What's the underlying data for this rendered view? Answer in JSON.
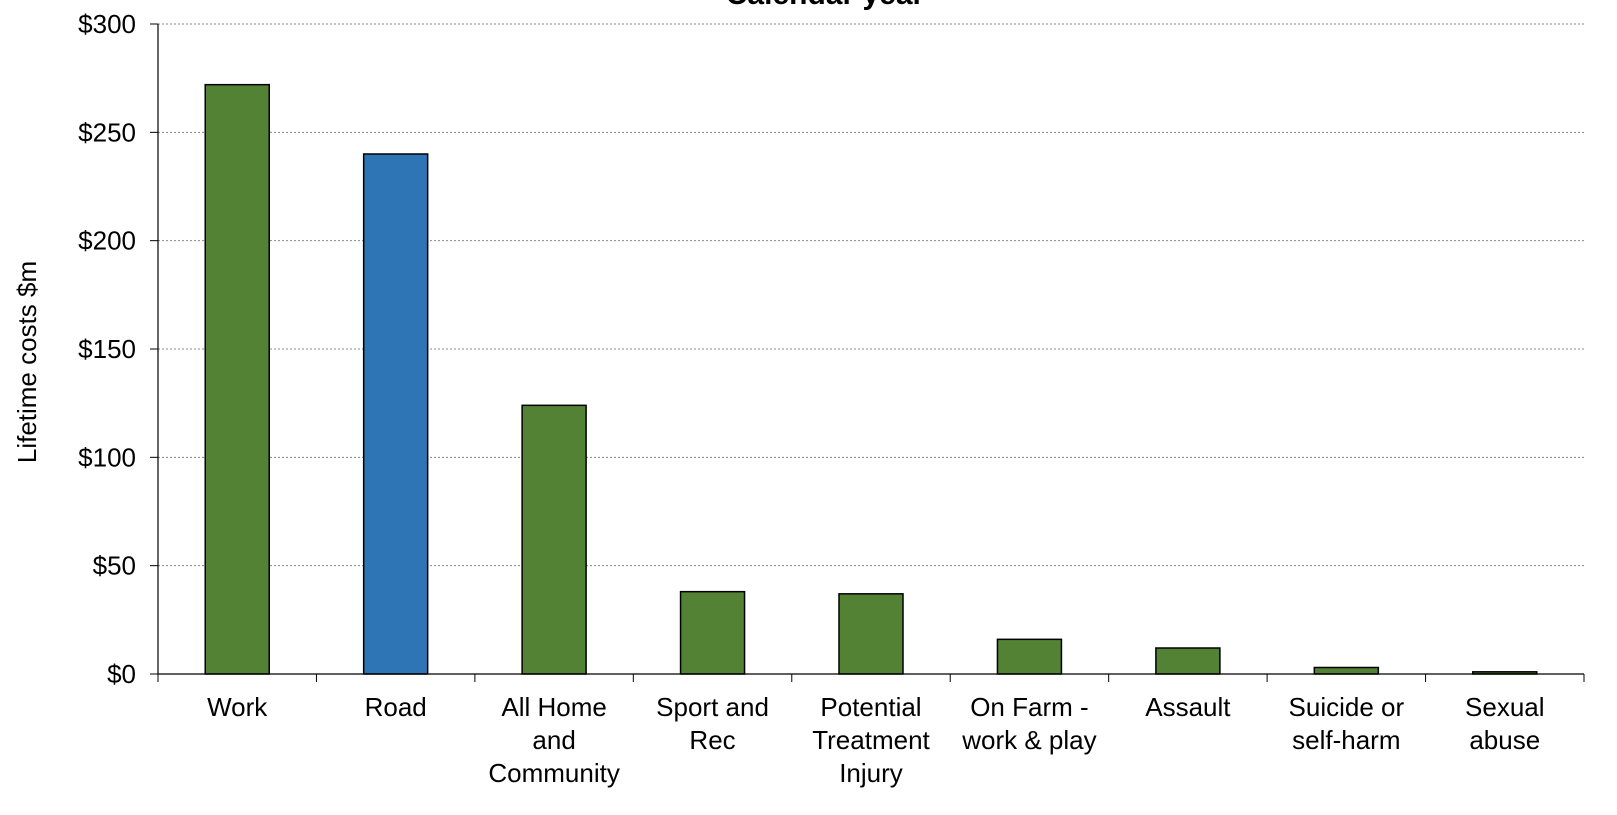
{
  "chart_data": {
    "type": "bar",
    "title": "Calendar year",
    "xlabel": "",
    "ylabel": "Lifetime costs $m",
    "ylim": [
      0,
      300
    ],
    "yticks": [
      0,
      50,
      100,
      150,
      200,
      250,
      300
    ],
    "ytick_labels": [
      "$0",
      "$50",
      "$100",
      "$150",
      "$200",
      "$250",
      "$300"
    ],
    "grid": true,
    "legend": "none",
    "categories": [
      [
        "Work"
      ],
      [
        "Road"
      ],
      [
        "All Home",
        "and",
        "Community"
      ],
      [
        "Sport and",
        "Rec"
      ],
      [
        "Potential",
        "Treatment",
        "Injury"
      ],
      [
        "On Farm -",
        "work & play"
      ],
      [
        "Assault"
      ],
      [
        "Suicide or",
        "self-harm"
      ],
      [
        "Sexual",
        "abuse"
      ]
    ],
    "values": [
      272,
      240,
      124,
      38,
      37,
      16,
      12,
      3,
      1
    ],
    "bar_colors": [
      "#548235",
      "#2E75B6",
      "#548235",
      "#548235",
      "#548235",
      "#548235",
      "#548235",
      "#548235",
      "#548235"
    ]
  }
}
